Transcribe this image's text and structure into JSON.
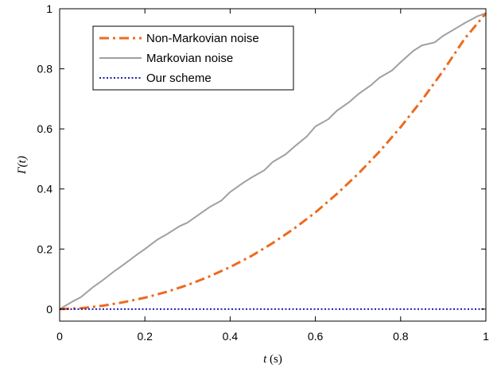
{
  "chart_data": {
    "type": "line",
    "xlabel_italic": "t",
    "xlabel_unit": " (s)",
    "ylabel_symbol": "Γ",
    "ylabel_arg": "(t)",
    "xlim": [
      0,
      1
    ],
    "ylim": [
      -0.04,
      1
    ],
    "xticks": [
      0,
      0.2,
      0.4,
      0.6,
      0.8,
      1
    ],
    "xtick_labels": [
      "0",
      "0.2",
      "0.4",
      "0.6",
      "0.8",
      "1"
    ],
    "yticks": [
      0,
      0.2,
      0.4,
      0.6,
      0.8,
      1
    ],
    "ytick_labels": [
      "0",
      "0.2",
      "0.4",
      "0.6",
      "0.8",
      "1"
    ],
    "grid": false,
    "legend_position": "top-left",
    "series": [
      {
        "name": "Non-Markovian noise",
        "color": "#ED6A1F",
        "style": "dash-dot",
        "x": [
          0,
          0.05,
          0.1,
          0.15,
          0.2,
          0.25,
          0.3,
          0.35,
          0.4,
          0.45,
          0.5,
          0.55,
          0.6,
          0.65,
          0.7,
          0.75,
          0.8,
          0.85,
          0.9,
          0.95,
          1.0
        ],
        "y": [
          0,
          0.003,
          0.011,
          0.023,
          0.038,
          0.057,
          0.08,
          0.108,
          0.14,
          0.177,
          0.22,
          0.268,
          0.322,
          0.383,
          0.45,
          0.524,
          0.606,
          0.696,
          0.794,
          0.9,
          0.985
        ]
      },
      {
        "name": "Markovian noise",
        "color": "#A0A0A0",
        "style": "solid",
        "x": [
          0,
          0.03,
          0.05,
          0.08,
          0.1,
          0.13,
          0.15,
          0.18,
          0.2,
          0.23,
          0.25,
          0.28,
          0.3,
          0.33,
          0.35,
          0.38,
          0.4,
          0.43,
          0.45,
          0.48,
          0.5,
          0.53,
          0.55,
          0.58,
          0.6,
          0.63,
          0.65,
          0.68,
          0.7,
          0.73,
          0.75,
          0.78,
          0.8,
          0.83,
          0.85,
          0.88,
          0.9,
          0.93,
          0.95,
          0.98,
          1.0
        ],
        "y": [
          0,
          0.025,
          0.04,
          0.075,
          0.095,
          0.128,
          0.148,
          0.18,
          0.2,
          0.232,
          0.248,
          0.275,
          0.288,
          0.318,
          0.338,
          0.362,
          0.39,
          0.42,
          0.438,
          0.462,
          0.49,
          0.515,
          0.54,
          0.575,
          0.608,
          0.632,
          0.66,
          0.69,
          0.715,
          0.745,
          0.77,
          0.795,
          0.822,
          0.86,
          0.878,
          0.888,
          0.91,
          0.935,
          0.952,
          0.975,
          0.985
        ]
      },
      {
        "name": "Our scheme",
        "color": "#1A1AB8",
        "style": "dotted",
        "x": [
          0,
          1
        ],
        "y": [
          0,
          0
        ]
      }
    ]
  }
}
